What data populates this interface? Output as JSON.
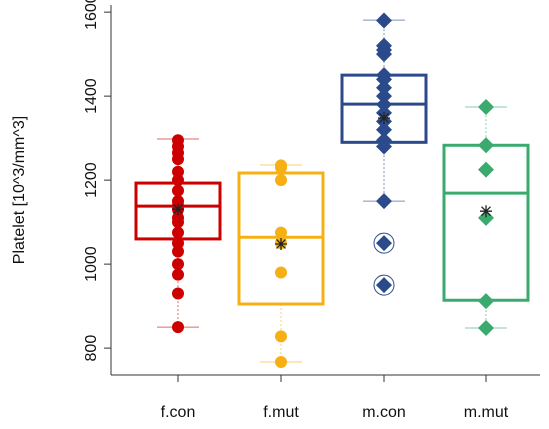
{
  "chart_data": {
    "type": "box",
    "y_label": "Platelet [10^3/mm^3]",
    "categories": [
      "f.con",
      "f.mut",
      "m.con",
      "m.mut"
    ],
    "ylim": [
      736,
      1617
    ],
    "yticks": [
      800,
      1000,
      1200,
      1400,
      1600
    ],
    "boxes": [
      {
        "color": "#cc0000",
        "marker": "circle",
        "whisker_low": 850,
        "q1": 1060,
        "median": 1138,
        "q3": 1193,
        "whisker_high": 1298,
        "mean": 1131,
        "points": [
          850,
          930,
          975,
          1000,
          1030,
          1050,
          1075,
          1100,
          1110,
          1130,
          1140,
          1150,
          1175,
          1200,
          1220,
          1250,
          1265,
          1280,
          1295
        ]
      },
      {
        "color": "#f7b014",
        "marker": "circle",
        "whisker_low": 767,
        "q1": 905,
        "median": 1064,
        "q3": 1217,
        "whisker_high": 1236,
        "mean": 1048,
        "points": [
          767,
          828,
          980,
          1050,
          1075,
          1200,
          1230,
          1235
        ]
      },
      {
        "color": "#2b4a8b",
        "marker": "diamond",
        "whisker_low": 1150,
        "q1": 1290,
        "median": 1381,
        "q3": 1450,
        "whisker_high": 1581,
        "mean": 1348,
        "points": [
          950,
          1050,
          1150,
          1280,
          1295,
          1320,
          1340,
          1360,
          1380,
          1400,
          1420,
          1440,
          1450,
          1500,
          1510,
          1520,
          1580
        ]
      },
      {
        "color": "#3aaa6e",
        "marker": "diamond",
        "whisker_low": 848,
        "q1": 914,
        "median": 1169,
        "q3": 1283,
        "whisker_high": 1374,
        "mean": 1126,
        "points": [
          848,
          912,
          1110,
          1225,
          1283,
          1374
        ]
      }
    ]
  }
}
